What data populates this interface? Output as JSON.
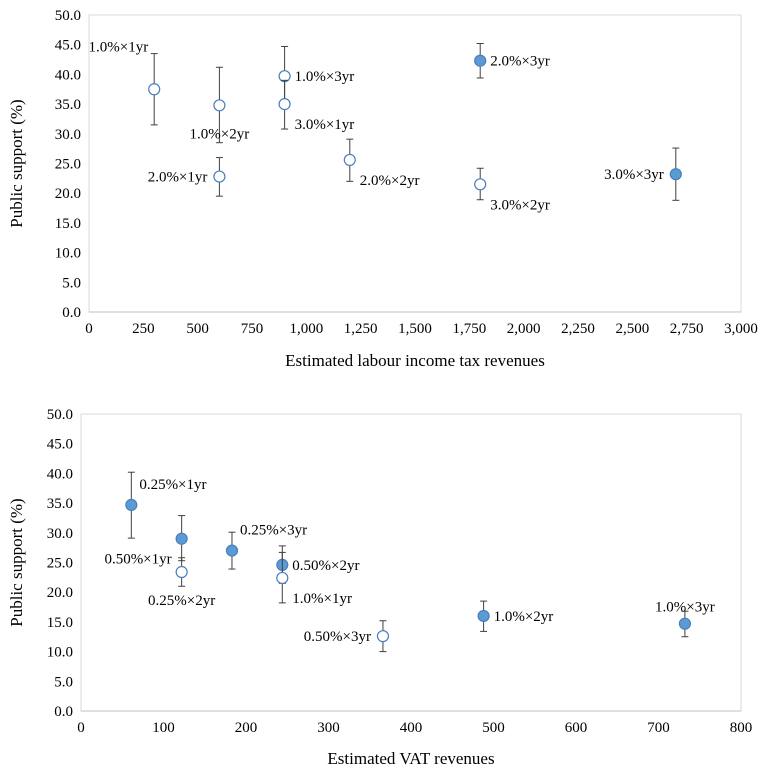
{
  "colors": {
    "filled": "#5b9bd5",
    "hollow_fill": "#ffffff",
    "marker_edge": "#4a7ebb",
    "error_bar": "#404040",
    "grid": "#d9d9d9",
    "axis": "#bfbfbf"
  },
  "chart_data": [
    {
      "type": "scatter",
      "title": "",
      "xlabel": "Estimated labour income tax revenues",
      "ylabel": "Public support (%)",
      "xlim": [
        0,
        3000
      ],
      "ylim": [
        0,
        50
      ],
      "grid": false,
      "x_ticks": [
        "0",
        "250",
        "500",
        "750",
        "1,000",
        "1,250",
        "1,500",
        "1,750",
        "2,000",
        "2,250",
        "2,500",
        "2,750",
        "3,000"
      ],
      "y_ticks": [
        "0.0",
        "5.0",
        "10.0",
        "15.0",
        "20.0",
        "25.0",
        "30.0",
        "35.0",
        "40.0",
        "45.0",
        "50.0"
      ],
      "points": [
        {
          "label": "1.0%×1yr",
          "x": 300,
          "y": 37.5,
          "lo": 31.5,
          "hi": 43.5,
          "filled": false,
          "pos": "topleft"
        },
        {
          "label": "1.0%×2yr",
          "x": 600,
          "y": 34.8,
          "lo": 28.5,
          "hi": 41.2,
          "filled": false,
          "pos": "below"
        },
        {
          "label": "2.0%×1yr",
          "x": 600,
          "y": 22.8,
          "lo": 19.5,
          "hi": 26.0,
          "filled": false,
          "pos": "left"
        },
        {
          "label": "1.0%×3yr",
          "x": 900,
          "y": 39.7,
          "lo": 34.5,
          "hi": 44.7,
          "filled": false,
          "pos": "right"
        },
        {
          "label": "3.0%×1yr",
          "x": 900,
          "y": 35.0,
          "lo": 30.8,
          "hi": 39.0,
          "filled": false,
          "pos": "belowright"
        },
        {
          "label": "2.0%×2yr",
          "x": 1200,
          "y": 25.6,
          "lo": 22.0,
          "hi": 29.1,
          "filled": false,
          "pos": "belowright"
        },
        {
          "label": "2.0%×3yr",
          "x": 1800,
          "y": 42.3,
          "lo": 39.4,
          "hi": 45.2,
          "filled": true,
          "pos": "right"
        },
        {
          "label": "3.0%×2yr",
          "x": 1800,
          "y": 21.5,
          "lo": 18.9,
          "hi": 24.2,
          "filled": false,
          "pos": "belowright"
        },
        {
          "label": "3.0%×3yr",
          "x": 2700,
          "y": 23.2,
          "lo": 18.8,
          "hi": 27.6,
          "filled": true,
          "pos": "left"
        }
      ]
    },
    {
      "type": "scatter",
      "title": "",
      "xlabel": "Estimated VAT revenues",
      "ylabel": "Public support (%)",
      "xlim": [
        0,
        800
      ],
      "ylim": [
        0,
        50
      ],
      "grid": false,
      "x_ticks": [
        "0",
        "100",
        "200",
        "300",
        "400",
        "500",
        "600",
        "700",
        "800"
      ],
      "y_ticks": [
        "0.0",
        "5.0",
        "10.0",
        "15.0",
        "20.0",
        "25.0",
        "30.0",
        "35.0",
        "40.0",
        "45.0",
        "50.0"
      ],
      "points": [
        {
          "label": "0.25%×1yr",
          "x": 61,
          "y": 34.7,
          "lo": 29.1,
          "hi": 40.2,
          "filled": true,
          "pos": "aboveright"
        },
        {
          "label": "0.50%×1yr",
          "x": 122,
          "y": 29.0,
          "lo": 25.3,
          "hi": 32.9,
          "filled": true,
          "pos": "belowleft"
        },
        {
          "label": "0.25%×2yr",
          "x": 122,
          "y": 23.4,
          "lo": 21.0,
          "hi": 25.8,
          "filled": false,
          "pos": "below"
        },
        {
          "label": "0.25%×3yr",
          "x": 183,
          "y": 27.0,
          "lo": 23.9,
          "hi": 30.1,
          "filled": true,
          "pos": "aboveright"
        },
        {
          "label": "0.50%×2yr",
          "x": 244,
          "y": 24.6,
          "lo": 21.5,
          "hi": 27.8,
          "filled": true,
          "pos": "right"
        },
        {
          "label": "1.0%×1yr",
          "x": 244,
          "y": 22.4,
          "lo": 18.2,
          "hi": 26.7,
          "filled": false,
          "pos": "belowright"
        },
        {
          "label": "0.50%×3yr",
          "x": 366,
          "y": 12.6,
          "lo": 10.0,
          "hi": 15.2,
          "filled": false,
          "pos": "left"
        },
        {
          "label": "1.0%×2yr",
          "x": 488,
          "y": 16.0,
          "lo": 13.4,
          "hi": 18.5,
          "filled": true,
          "pos": "right"
        },
        {
          "label": "1.0%×3yr",
          "x": 732,
          "y": 14.7,
          "lo": 12.5,
          "hi": 16.8,
          "filled": true,
          "pos": "above"
        }
      ]
    }
  ]
}
